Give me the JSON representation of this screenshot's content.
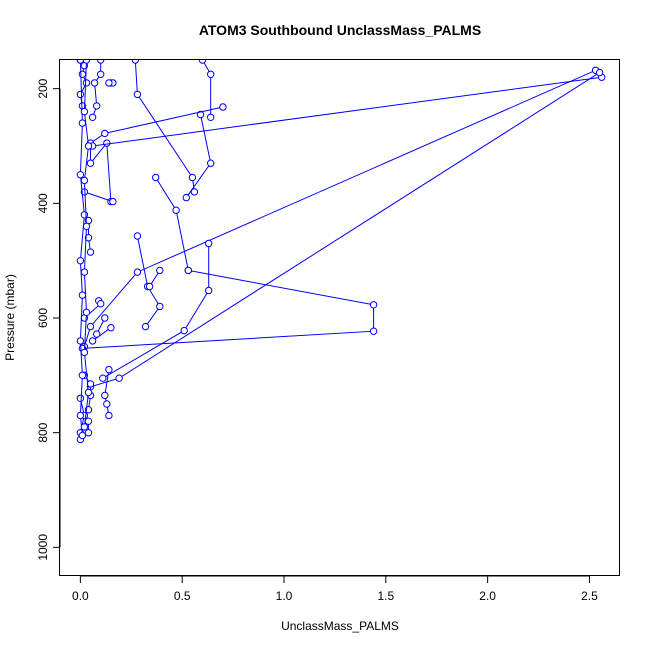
{
  "chart_data": {
    "type": "line",
    "title": "ATOM3 Southbound UnclassMass_PALMS",
    "xlabel": "UnclassMass_PALMS",
    "ylabel": "Pressure (mbar)",
    "xlim": [
      -0.1,
      2.65
    ],
    "ylim": [
      1050,
      150
    ],
    "y_reversed": true,
    "xticks": [
      0,
      0.5,
      1,
      1.5,
      2,
      2.5
    ],
    "xtick_labels": [
      "0.0",
      "0.5",
      "1.0",
      "1.5",
      "2.0",
      "2.5"
    ],
    "yticks": [
      200,
      400,
      600,
      800,
      1000
    ],
    "ytick_labels": [
      "200",
      "400",
      "600",
      "800",
      "1000"
    ],
    "grid": false,
    "legend": "none",
    "series_color": "#0000ff",
    "marker": "open-circle",
    "segments": [
      [
        [
          0.0,
          150
        ],
        [
          0.02,
          160
        ],
        [
          0.01,
          175
        ],
        [
          0.03,
          190
        ],
        [
          0.0,
          210
        ],
        [
          0.01,
          230
        ]
      ],
      [
        [
          0.1,
          150
        ],
        [
          0.1,
          175
        ],
        [
          0.07,
          190
        ],
        [
          0.08,
          230
        ],
        [
          0.06,
          250
        ]
      ],
      [
        [
          0.15,
          190
        ],
        [
          0.16,
          190
        ],
        [
          0.14,
          190
        ]
      ],
      [
        [
          0.27,
          150
        ],
        [
          0.28,
          210
        ],
        [
          0.55,
          355
        ],
        [
          0.56,
          380
        ]
      ],
      [
        [
          0.6,
          150
        ],
        [
          0.64,
          175
        ],
        [
          0.64,
          250
        ]
      ],
      [
        [
          0.59,
          245
        ],
        [
          0.64,
          330
        ],
        [
          0.52,
          390
        ]
      ],
      [
        [
          0.7,
          232
        ],
        [
          0.12,
          278
        ],
        [
          0.05,
          295
        ],
        [
          0.05,
          330
        ],
        [
          0.13,
          295
        ],
        [
          0.15,
          397
        ]
      ],
      [
        [
          2.56,
          180
        ],
        [
          0.06,
          300
        ]
      ],
      [
        [
          2.53,
          168
        ],
        [
          0.28,
          520
        ],
        [
          0.05,
          615
        ],
        [
          0.02,
          650
        ]
      ],
      [
        [
          2.55,
          172
        ],
        [
          0.19,
          705
        ],
        [
          0.05,
          720
        ]
      ],
      [
        [
          0.37,
          355
        ],
        [
          0.47,
          412
        ],
        [
          0.53,
          517
        ]
      ],
      [
        [
          0.28,
          457
        ],
        [
          0.33,
          545
        ],
        [
          0.39,
          580
        ],
        [
          0.32,
          615
        ]
      ],
      [
        [
          0.63,
          470
        ],
        [
          0.63,
          552
        ],
        [
          0.51,
          622
        ],
        [
          0.11,
          705
        ]
      ],
      [
        [
          0.39,
          517
        ],
        [
          0.34,
          545
        ]
      ],
      [
        [
          0.53,
          517
        ],
        [
          1.44,
          577
        ],
        [
          1.44,
          623
        ],
        [
          0.01,
          653
        ]
      ],
      [
        [
          0.15,
          617
        ],
        [
          0.06,
          640
        ]
      ],
      [
        [
          0.12,
          600
        ],
        [
          0.08,
          628
        ]
      ],
      [
        [
          0.09,
          570
        ],
        [
          0.1,
          575
        ],
        [
          0.02,
          600
        ]
      ],
      [
        [
          0.02,
          380
        ],
        [
          0.16,
          397
        ]
      ],
      [
        [
          0.04,
          430
        ],
        [
          0.04,
          460
        ],
        [
          0.05,
          485
        ]
      ],
      [
        [
          0.14,
          690
        ],
        [
          0.12,
          735
        ],
        [
          0.13,
          750
        ],
        [
          0.14,
          770
        ]
      ],
      [
        [
          0.02,
          700
        ],
        [
          0.05,
          715
        ],
        [
          0.05,
          735
        ],
        [
          0.04,
          760
        ]
      ],
      [
        [
          0.0,
          740
        ],
        [
          0.02,
          770
        ],
        [
          0.0,
          800
        ],
        [
          0.0,
          812
        ]
      ],
      [
        [
          0.04,
          780
        ],
        [
          0.04,
          800
        ]
      ],
      [
        [
          0.0,
          150
        ],
        [
          0.01,
          260
        ],
        [
          0.0,
          350
        ],
        [
          0.02,
          420
        ],
        [
          0.0,
          500
        ],
        [
          0.01,
          560
        ],
        [
          0.0,
          640
        ],
        [
          0.01,
          700
        ],
        [
          0.0,
          770
        ],
        [
          0.01,
          805
        ]
      ],
      [
        [
          0.03,
          150
        ],
        [
          0.02,
          240
        ],
        [
          0.04,
          300
        ],
        [
          0.02,
          360
        ],
        [
          0.03,
          440
        ],
        [
          0.02,
          520
        ],
        [
          0.03,
          590
        ],
        [
          0.02,
          660
        ],
        [
          0.04,
          730
        ],
        [
          0.02,
          790
        ]
      ]
    ]
  }
}
